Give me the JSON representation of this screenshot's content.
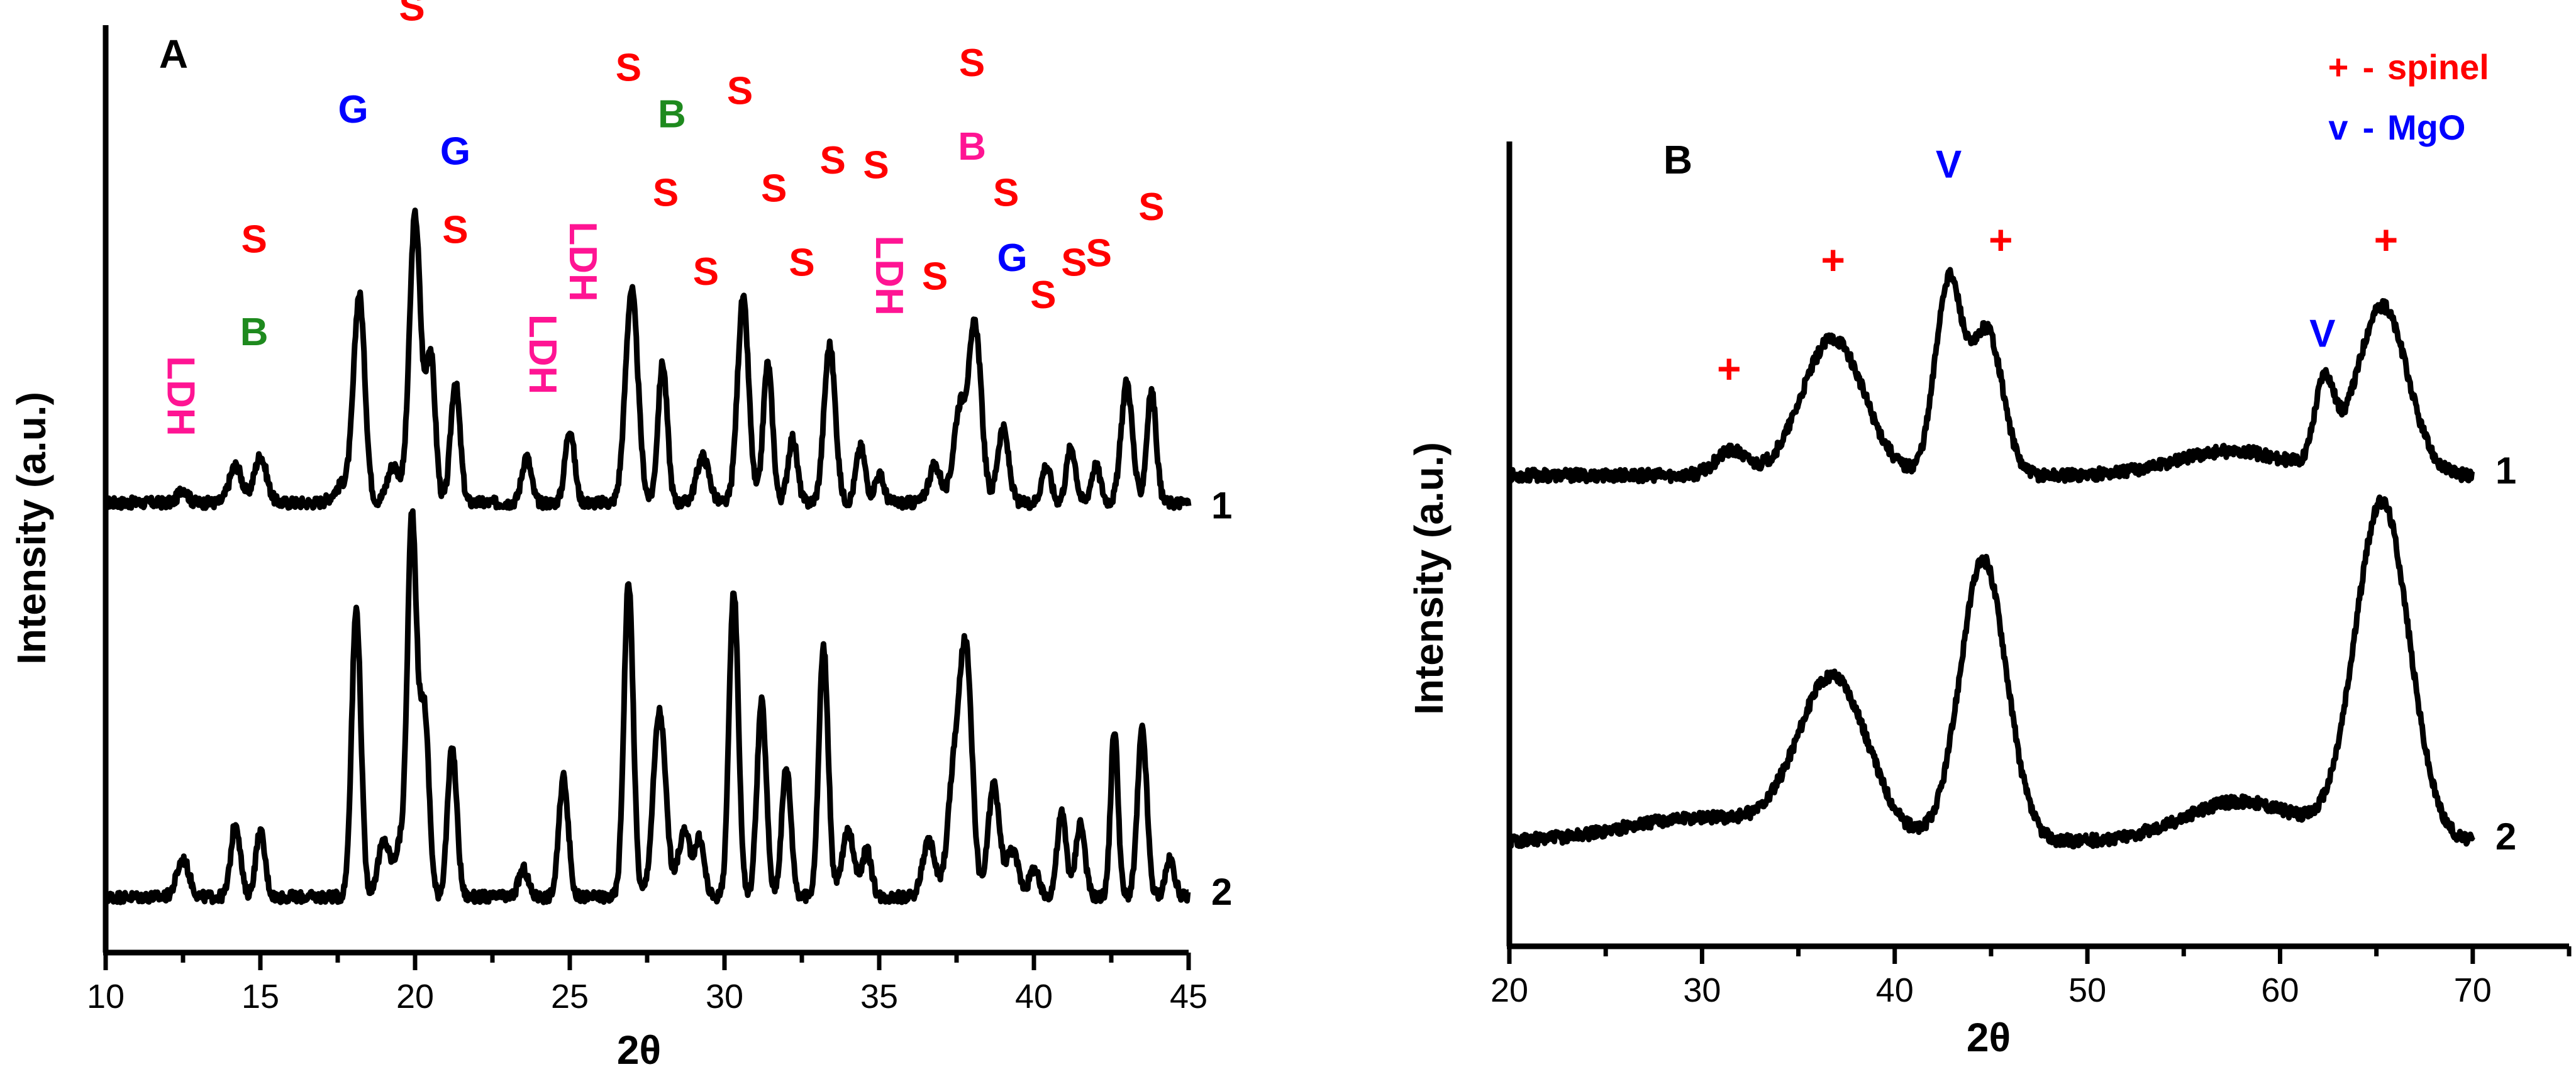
{
  "colors": {
    "axis": "#000000",
    "line": "#000000",
    "spinel": "#ff0000",
    "mgo": "#0000ff",
    "green": "#1e8a1e",
    "pink": "#ff1493",
    "red": "#ff0000",
    "blue": "#0000ff"
  },
  "chart_data": [
    {
      "panel": "A",
      "type": "line",
      "title": "",
      "panel_label": "A",
      "xlabel": "2θ",
      "ylabel": "Intensity (a.u.)",
      "xlim": [
        10,
        45
      ],
      "ylim": [
        0,
        10
      ],
      "xticks": [
        10,
        15,
        20,
        25,
        30,
        35,
        40,
        45
      ],
      "xtick_labels": [
        "10",
        "15",
        "20",
        "25",
        "30",
        "35",
        "40",
        "45"
      ],
      "y_ticks_shown": false,
      "series": [
        {
          "name": "1",
          "baseline": 4.85,
          "noise": 0.12,
          "peaks": [
            [
              12.5,
              0.15,
              0.15
            ],
            [
              14.2,
              0.4,
              0.2
            ],
            [
              15.0,
              0.5,
              0.2
            ],
            [
              17.7,
              0.2,
              0.3
            ],
            [
              18.2,
              2.2,
              0.18
            ],
            [
              19.3,
              0.4,
              0.2
            ],
            [
              20.0,
              3.1,
              0.18
            ],
            [
              20.5,
              1.6,
              0.15
            ],
            [
              21.3,
              1.3,
              0.15
            ],
            [
              23.6,
              0.5,
              0.15
            ],
            [
              25.0,
              0.8,
              0.15
            ],
            [
              27.0,
              2.3,
              0.2
            ],
            [
              28.0,
              1.5,
              0.15
            ],
            [
              29.3,
              0.5,
              0.2
            ],
            [
              30.6,
              2.2,
              0.18
            ],
            [
              31.4,
              1.5,
              0.15
            ],
            [
              32.2,
              0.7,
              0.15
            ],
            [
              33.4,
              1.7,
              0.18
            ],
            [
              34.4,
              0.6,
              0.15
            ],
            [
              35.0,
              0.3,
              0.15
            ],
            [
              36.8,
              0.4,
              0.2
            ],
            [
              37.6,
              1.0,
              0.2
            ],
            [
              38.1,
              1.9,
              0.2
            ],
            [
              39.0,
              0.8,
              0.18
            ],
            [
              40.4,
              0.4,
              0.15
            ],
            [
              41.2,
              0.6,
              0.15
            ],
            [
              42.0,
              0.4,
              0.15
            ],
            [
              43.0,
              1.3,
              0.18
            ],
            [
              43.8,
              1.2,
              0.15
            ]
          ],
          "right_label": "1"
        },
        {
          "name": "2",
          "baseline": 0.6,
          "noise": 0.12,
          "peaks": [
            [
              12.5,
              0.4,
              0.2
            ],
            [
              14.2,
              0.8,
              0.15
            ],
            [
              15.0,
              0.7,
              0.15
            ],
            [
              18.1,
              3.1,
              0.15
            ],
            [
              19.0,
              0.6,
              0.2
            ],
            [
              19.5,
              0.5,
              0.15
            ],
            [
              19.9,
              4.1,
              0.15
            ],
            [
              20.3,
              2.0,
              0.15
            ],
            [
              21.2,
              1.6,
              0.15
            ],
            [
              23.5,
              0.3,
              0.15
            ],
            [
              24.8,
              1.3,
              0.15
            ],
            [
              26.9,
              3.4,
              0.15
            ],
            [
              27.9,
              2.0,
              0.2
            ],
            [
              28.7,
              0.7,
              0.2
            ],
            [
              29.2,
              0.6,
              0.15
            ],
            [
              30.3,
              3.3,
              0.15
            ],
            [
              31.2,
              2.1,
              0.15
            ],
            [
              32.0,
              1.4,
              0.15
            ],
            [
              33.2,
              2.7,
              0.15
            ],
            [
              34.0,
              0.7,
              0.2
            ],
            [
              34.6,
              0.5,
              0.15
            ],
            [
              36.6,
              0.6,
              0.2
            ],
            [
              37.4,
              1.2,
              0.2
            ],
            [
              37.8,
              2.6,
              0.2
            ],
            [
              38.7,
              1.2,
              0.18
            ],
            [
              39.3,
              0.5,
              0.2
            ],
            [
              40.0,
              0.3,
              0.15
            ],
            [
              40.9,
              0.9,
              0.15
            ],
            [
              41.5,
              0.8,
              0.15
            ],
            [
              42.6,
              1.8,
              0.12
            ],
            [
              43.5,
              1.8,
              0.15
            ],
            [
              44.4,
              0.4,
              0.15
            ]
          ],
          "right_label": "2"
        }
      ],
      "annotations": [
        {
          "text": "LDH",
          "x": 12.0,
          "y": 6.0,
          "color": "pink",
          "rotate": 90
        },
        {
          "text": "S",
          "x": 14.8,
          "y": 7.55,
          "color": "red"
        },
        {
          "text": "B",
          "x": 14.8,
          "y": 6.55,
          "color": "green"
        },
        {
          "text": "G",
          "x": 18.0,
          "y": 8.95,
          "color": "blue"
        },
        {
          "text": "S",
          "x": 19.9,
          "y": 10.05,
          "color": "red"
        },
        {
          "text": "G",
          "x": 21.3,
          "y": 8.5,
          "color": "blue"
        },
        {
          "text": "S",
          "x": 21.3,
          "y": 7.65,
          "color": "red"
        },
        {
          "text": "LDH",
          "x": 23.7,
          "y": 6.45,
          "color": "pink",
          "rotate": 90
        },
        {
          "text": "LDH",
          "x": 25.0,
          "y": 7.45,
          "color": "pink",
          "rotate": 90
        },
        {
          "text": "S",
          "x": 26.9,
          "y": 9.4,
          "color": "red"
        },
        {
          "text": "B",
          "x": 28.3,
          "y": 8.9,
          "color": "green"
        },
        {
          "text": "S",
          "x": 28.1,
          "y": 8.05,
          "color": "red"
        },
        {
          "text": "S",
          "x": 29.4,
          "y": 7.2,
          "color": "red"
        },
        {
          "text": "S",
          "x": 30.5,
          "y": 9.15,
          "color": "red"
        },
        {
          "text": "S",
          "x": 31.6,
          "y": 8.1,
          "color": "red"
        },
        {
          "text": "S",
          "x": 32.5,
          "y": 7.3,
          "color": "red"
        },
        {
          "text": "S",
          "x": 33.5,
          "y": 8.4,
          "color": "red"
        },
        {
          "text": "S",
          "x": 34.9,
          "y": 8.35,
          "color": "red"
        },
        {
          "text": "LDH",
          "x": 34.9,
          "y": 7.3,
          "color": "pink",
          "rotate": 90
        },
        {
          "text": "S",
          "x": 36.8,
          "y": 7.15,
          "color": "red"
        },
        {
          "text": "S",
          "x": 38.0,
          "y": 9.45,
          "color": "red"
        },
        {
          "text": "B",
          "x": 38.0,
          "y": 8.55,
          "color": "pink"
        },
        {
          "text": "S",
          "x": 39.1,
          "y": 8.05,
          "color": "red"
        },
        {
          "text": "G",
          "x": 39.3,
          "y": 7.35,
          "color": "blue"
        },
        {
          "text": "S",
          "x": 40.3,
          "y": 6.95,
          "color": "red"
        },
        {
          "text": "S",
          "x": 41.3,
          "y": 7.3,
          "color": "red"
        },
        {
          "text": "S",
          "x": 42.1,
          "y": 7.4,
          "color": "red"
        },
        {
          "text": "S",
          "x": 43.8,
          "y": 7.9,
          "color": "red"
        }
      ]
    },
    {
      "panel": "B",
      "type": "line",
      "title": "",
      "panel_label": "B",
      "xlabel": "2θ",
      "ylabel": "Intensity (a.u.)",
      "xlim": [
        20,
        75
      ],
      "ylim": [
        0,
        10
      ],
      "xticks": [
        20,
        30,
        40,
        50,
        60,
        70
      ],
      "xtick_labels": [
        "20",
        "30",
        "40",
        "50",
        "60",
        "70"
      ],
      "y_ticks_shown": false,
      "legend": {
        "placement": "top-right",
        "entries": [
          {
            "symbol": "+",
            "dash": "-",
            "label": "spinel",
            "color": "spinel"
          },
          {
            "symbol": "v",
            "dash": "-",
            "label": "MgO",
            "color": "mgo"
          }
        ]
      },
      "series": [
        {
          "name": "1",
          "baseline": 5.85,
          "noise": 0.15,
          "peaks": [
            [
              31.5,
              0.3,
              0.8
            ],
            [
              36.8,
              1.7,
              1.6
            ],
            [
              42.8,
              2.4,
              0.7
            ],
            [
              44.8,
              1.8,
              0.8
            ],
            [
              62.3,
              1.05,
              0.5
            ],
            [
              65.3,
              2.1,
              1.3
            ],
            [
              57.5,
              0.3,
              3.0
            ]
          ],
          "right_label": "1"
        },
        {
          "name": "2",
          "baseline": 1.3,
          "noise": 0.15,
          "peaks": [
            [
              36.8,
              2.0,
              1.8
            ],
            [
              44.6,
              3.5,
              1.2
            ],
            [
              30.0,
              0.3,
              4.0
            ],
            [
              58.0,
              0.5,
              3.0
            ],
            [
              65.3,
              4.2,
              1.4
            ]
          ],
          "right_label": "2"
        }
      ],
      "annotations": [
        {
          "text": "+",
          "x": 31.4,
          "y": 7.0,
          "color": "spinel"
        },
        {
          "text": "+",
          "x": 36.8,
          "y": 8.35,
          "color": "spinel"
        },
        {
          "text": "V",
          "x": 42.8,
          "y": 9.55,
          "color": "mgo"
        },
        {
          "text": "+",
          "x": 45.5,
          "y": 8.6,
          "color": "spinel"
        },
        {
          "text": "V",
          "x": 62.2,
          "y": 7.45,
          "color": "mgo"
        },
        {
          "text": "+",
          "x": 65.5,
          "y": 8.6,
          "color": "spinel"
        }
      ]
    }
  ]
}
